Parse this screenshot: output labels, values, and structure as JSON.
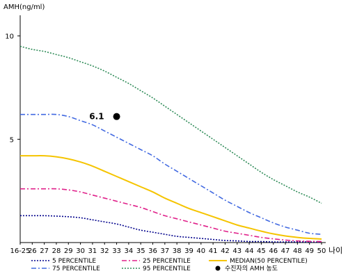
{
  "chart_data": {
    "type": "line",
    "ylabel": "AMH(ng/ml)",
    "xlabel": "나이",
    "ylim": [
      0,
      11
    ],
    "yticks": [
      5,
      10
    ],
    "categories": [
      "16-25",
      "26",
      "27",
      "28",
      "29",
      "30",
      "31",
      "32",
      "33",
      "34",
      "35",
      "36",
      "37",
      "38",
      "39",
      "40",
      "41",
      "42",
      "43",
      "44",
      "45",
      "46",
      "47",
      "48",
      "49",
      "50"
    ],
    "series": [
      {
        "name": "5 PERCENTILE",
        "color": "#00008b",
        "dash": "2,2",
        "values": [
          1.3,
          1.3,
          1.3,
          1.28,
          1.25,
          1.2,
          1.1,
          1.0,
          0.9,
          0.75,
          0.6,
          0.5,
          0.4,
          0.3,
          0.25,
          0.2,
          0.15,
          0.1,
          0.08,
          0.05,
          0.05,
          0.03,
          0.03,
          0.03,
          0.03,
          0.02
        ]
      },
      {
        "name": "75 PERCENTILE",
        "color": "#4169e1",
        "dash": "7,3,2,3",
        "values": [
          6.2,
          6.2,
          6.2,
          6.2,
          6.1,
          5.9,
          5.7,
          5.4,
          5.1,
          4.8,
          4.5,
          4.2,
          3.8,
          3.45,
          3.1,
          2.75,
          2.4,
          2.05,
          1.75,
          1.45,
          1.2,
          0.95,
          0.75,
          0.6,
          0.45,
          0.4
        ]
      },
      {
        "name": "25 PERCENTILE",
        "color": "#e0208a",
        "dash": "7,3,2,3",
        "values": [
          2.6,
          2.6,
          2.6,
          2.6,
          2.55,
          2.45,
          2.3,
          2.15,
          2.0,
          1.85,
          1.7,
          1.5,
          1.3,
          1.15,
          1.0,
          0.85,
          0.7,
          0.55,
          0.45,
          0.35,
          0.25,
          0.18,
          0.12,
          0.08,
          0.06,
          0.05
        ]
      },
      {
        "name": "95 PERCENTILE",
        "color": "#2e8b57",
        "dash": "2,2",
        "values": [
          9.5,
          9.35,
          9.25,
          9.1,
          8.95,
          8.75,
          8.55,
          8.3,
          8.0,
          7.7,
          7.35,
          7.0,
          6.6,
          6.2,
          5.8,
          5.4,
          5.0,
          4.6,
          4.2,
          3.8,
          3.4,
          3.05,
          2.75,
          2.45,
          2.2,
          1.9
        ]
      },
      {
        "name": "MEDIAN(50 PERCENTILE)",
        "color": "#f5c400",
        "dash": "",
        "values": [
          4.2,
          4.2,
          4.2,
          4.15,
          4.05,
          3.9,
          3.7,
          3.45,
          3.2,
          2.95,
          2.7,
          2.45,
          2.15,
          1.9,
          1.65,
          1.45,
          1.25,
          1.05,
          0.85,
          0.7,
          0.55,
          0.42,
          0.32,
          0.25,
          0.2,
          0.17
        ]
      }
    ],
    "marker": {
      "name": "수진자의 AMH 농도",
      "x": "33",
      "y": 6.1,
      "label": "6.1"
    },
    "legend_order": [
      "5 PERCENTILE",
      "25 PERCENTILE",
      "MEDIAN(50 PERCENTILE)",
      "75 PERCENTILE",
      "95 PERCENTILE",
      "수진자의 AMH 농도"
    ],
    "legend_position": "bottom",
    "grid": false
  }
}
